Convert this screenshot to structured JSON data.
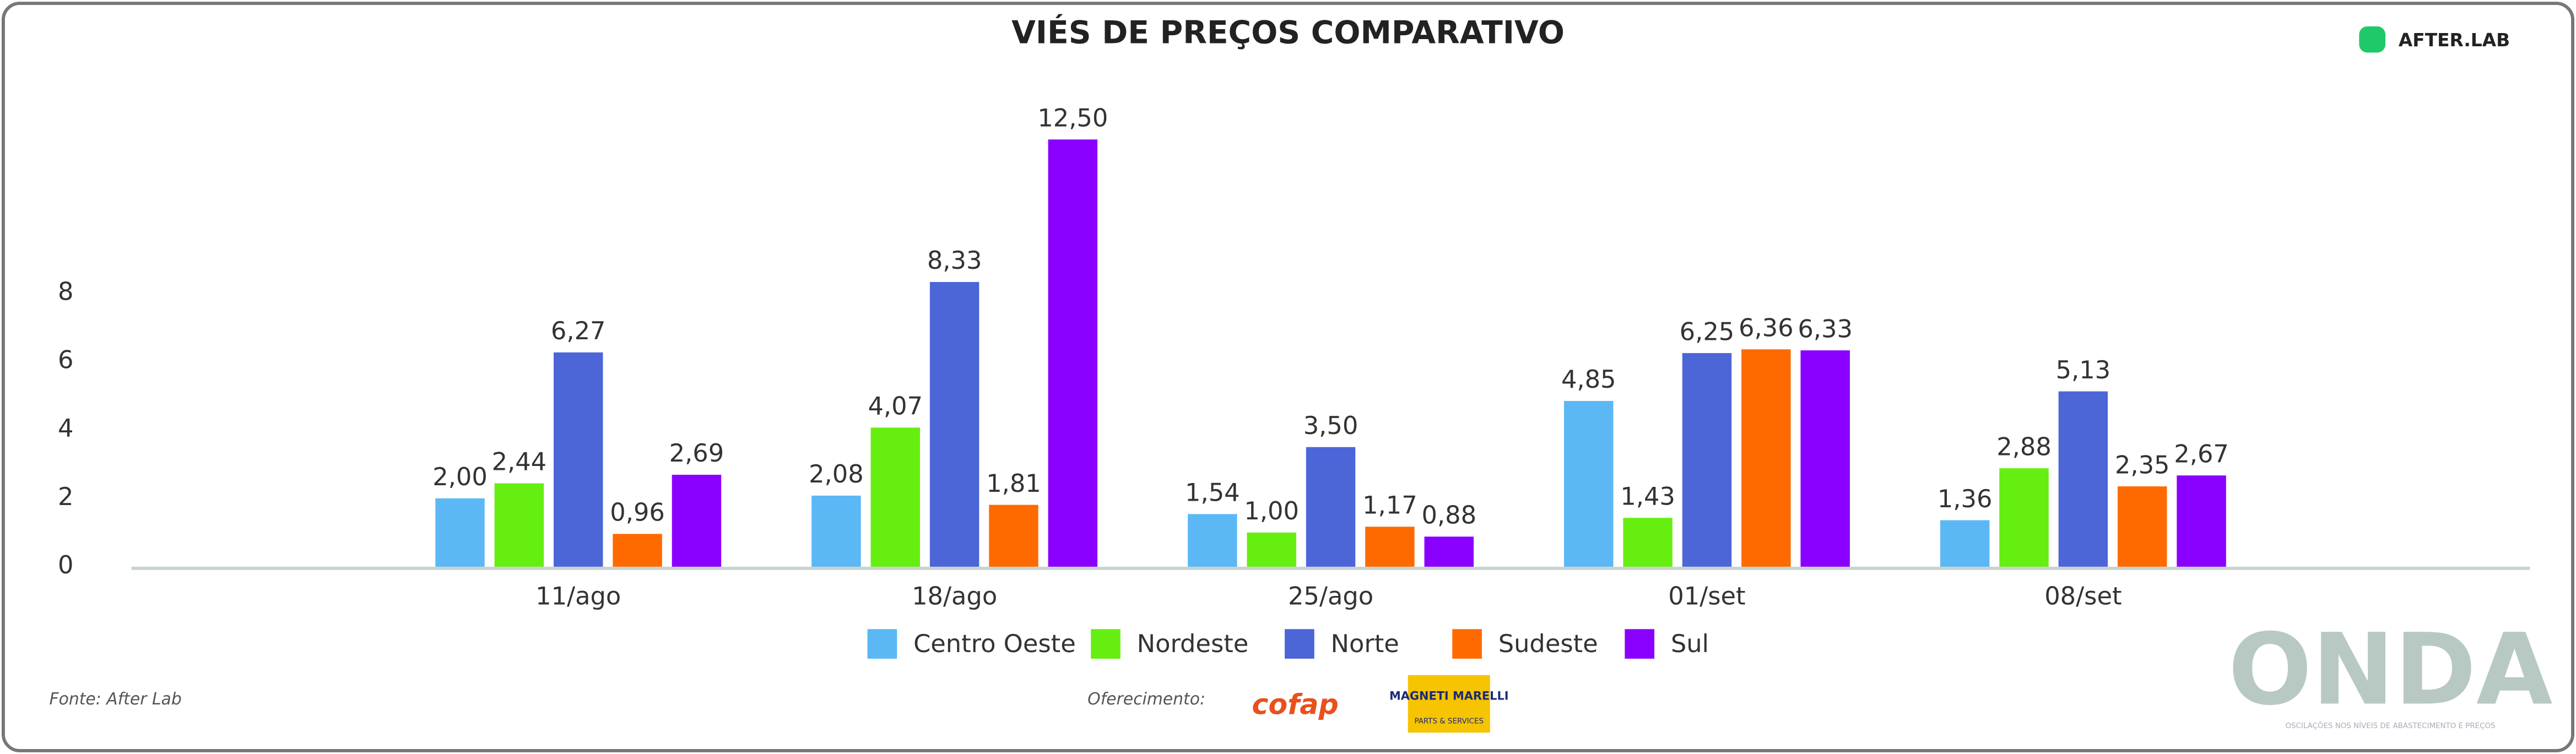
{
  "chart_data": {
    "type": "bar",
    "title": "VIÉS DE PREÇOS COMPARATIVO",
    "categories": [
      "11/ago",
      "18/ago",
      "25/ago",
      "01/set",
      "08/set"
    ],
    "series": [
      {
        "name": "Centro Oeste",
        "color": "#5bb8f5",
        "values": [
          2.0,
          2.08,
          1.54,
          4.85,
          1.36
        ],
        "value_labels": [
          "2,00",
          "2,08",
          "1,54",
          "4,85",
          "1,36"
        ]
      },
      {
        "name": "Nordeste",
        "color": "#66ee11",
        "values": [
          2.44,
          4.07,
          1.0,
          1.43,
          2.88
        ],
        "value_labels": [
          "2,44",
          "4,07",
          "1,00",
          "1,43",
          "2,88"
        ]
      },
      {
        "name": "Norte",
        "color": "#4c66d8",
        "values": [
          6.27,
          8.33,
          3.5,
          6.25,
          5.13
        ],
        "value_labels": [
          "6,27",
          "8,33",
          "3,50",
          "6,25",
          "5,13"
        ]
      },
      {
        "name": "Sudeste",
        "color": "#ff6a00",
        "values": [
          0.96,
          1.81,
          1.17,
          6.36,
          2.35
        ],
        "value_labels": [
          "0,96",
          "1,81",
          "1,17",
          "6,36",
          "2,35"
        ]
      },
      {
        "name": "Sul",
        "color": "#8a00ff",
        "values": [
          2.69,
          12.5,
          0.88,
          6.33,
          2.67
        ],
        "value_labels": [
          "2,69",
          "12,50",
          "0,88",
          "6,33",
          "2,67"
        ]
      }
    ],
    "ylim": [
      0,
      13.6
    ],
    "yticks": [
      0,
      2,
      4,
      6,
      8
    ],
    "grid": false,
    "legend": "bottom"
  },
  "brand": "AFTER.LAB",
  "source": "Fonte: After Lab",
  "sponsor_label": "Oferecimento:",
  "sponsors": [
    "cofap",
    "MAGNETI MARELLI",
    "PARTS & SERVICES"
  ],
  "logo": {
    "name": "ONDA",
    "tagline": "OSCILAÇÕES NOS NÍVEIS DE ABASTECIMENTO E PREÇOS"
  }
}
